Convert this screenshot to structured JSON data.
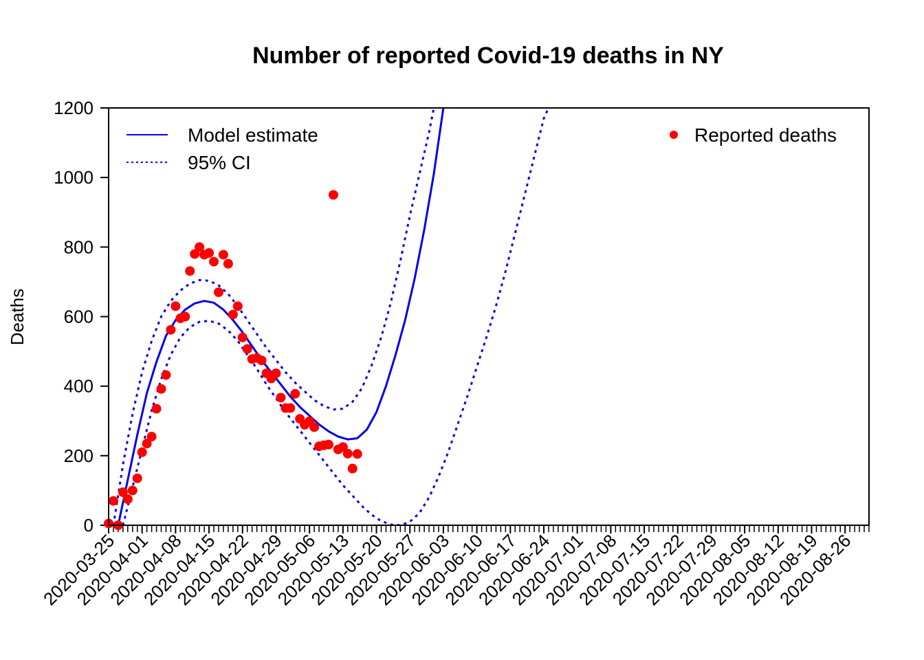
{
  "chart_data": {
    "type": "line",
    "title": "Number of reported Covid-19 deaths in NY",
    "xlabel": "",
    "ylabel": "Deaths",
    "ylim": [
      0,
      1200
    ],
    "xlim": [
      "2020-03-25",
      "2020-08-31"
    ],
    "y_ticks": [
      0,
      200,
      400,
      600,
      800,
      1000,
      1200
    ],
    "x_tick_labels": [
      "2020-03-25",
      "2020-04-01",
      "2020-04-08",
      "2020-04-15",
      "2020-04-22",
      "2020-04-29",
      "2020-05-06",
      "2020-05-13",
      "2020-05-20",
      "2020-05-27",
      "2020-06-03",
      "2020-06-10",
      "2020-06-17",
      "2020-06-24",
      "2020-07-01",
      "2020-07-08",
      "2020-07-15",
      "2020-07-22",
      "2020-07-29",
      "2020-08-05",
      "2020-08-12",
      "2020-08-19",
      "2020-08-26"
    ],
    "grid": false,
    "legend_left": [
      {
        "name": "Model estimate",
        "style": "solid"
      },
      {
        "name": "95% CI",
        "style": "dotted"
      }
    ],
    "legend_right": [
      {
        "name": "Reported deaths",
        "style": "point"
      }
    ],
    "colors": {
      "model": "#0000ee",
      "points": "#ff0000"
    },
    "series": [
      {
        "name": "Reported deaths",
        "kind": "scatter",
        "x": [
          "2020-03-25",
          "2020-03-26",
          "2020-03-27",
          "2020-03-28",
          "2020-03-29",
          "2020-03-30",
          "2020-03-31",
          "2020-04-01",
          "2020-04-02",
          "2020-04-03",
          "2020-04-04",
          "2020-04-05",
          "2020-04-06",
          "2020-04-07",
          "2020-04-08",
          "2020-04-09",
          "2020-04-10",
          "2020-04-11",
          "2020-04-12",
          "2020-04-13",
          "2020-04-14",
          "2020-04-15",
          "2020-04-16",
          "2020-04-17",
          "2020-04-18",
          "2020-04-19",
          "2020-04-20",
          "2020-04-21",
          "2020-04-22",
          "2020-04-23",
          "2020-04-24",
          "2020-04-25",
          "2020-04-26",
          "2020-04-27",
          "2020-04-28",
          "2020-04-29",
          "2020-04-30",
          "2020-05-01",
          "2020-05-02",
          "2020-05-03",
          "2020-05-04",
          "2020-05-05",
          "2020-05-06",
          "2020-05-07",
          "2020-05-08",
          "2020-05-09",
          "2020-05-10",
          "2020-05-11",
          "2020-05-12",
          "2020-05-13",
          "2020-05-14",
          "2020-05-15",
          "2020-05-16"
        ],
        "y": [
          5,
          70,
          0,
          95,
          75,
          100,
          135,
          210,
          235,
          255,
          335,
          392,
          432,
          562,
          630,
          595,
          600,
          731,
          780,
          800,
          778,
          783,
          758,
          670,
          778,
          752,
          606,
          630,
          540,
          507,
          478,
          481,
          474,
          437,
          422,
          437,
          367,
          337,
          337,
          378,
          306,
          289,
          299,
          282,
          227,
          230,
          232,
          950,
          218,
          225,
          206,
          163,
          205
        ]
      },
      {
        "name": "Model estimate",
        "kind": "line",
        "style": "solid",
        "x": [
          "2020-03-27",
          "2020-03-29",
          "2020-03-31",
          "2020-04-02",
          "2020-04-04",
          "2020-04-06",
          "2020-04-08",
          "2020-04-10",
          "2020-04-12",
          "2020-04-14",
          "2020-04-16",
          "2020-04-18",
          "2020-04-20",
          "2020-04-22",
          "2020-04-24",
          "2020-04-26",
          "2020-04-28",
          "2020-04-30",
          "2020-05-02",
          "2020-05-04",
          "2020-05-06",
          "2020-05-08",
          "2020-05-10",
          "2020-05-12",
          "2020-05-14",
          "2020-05-16",
          "2020-05-18",
          "2020-05-20",
          "2020-05-22",
          "2020-05-24",
          "2020-05-26",
          "2020-05-28",
          "2020-05-30",
          "2020-06-01",
          "2020-06-03"
        ],
        "y": [
          0,
          130,
          260,
          380,
          470,
          545,
          590,
          620,
          638,
          645,
          640,
          620,
          590,
          555,
          515,
          475,
          440,
          405,
          370,
          340,
          315,
          290,
          270,
          255,
          247,
          250,
          275,
          325,
          400,
          490,
          590,
          710,
          850,
          1010,
          1200
        ]
      },
      {
        "name": "95% CI",
        "kind": "line",
        "style": "dotted",
        "x": [
          "2020-03-26",
          "2020-03-28",
          "2020-03-30",
          "2020-04-01",
          "2020-04-03",
          "2020-04-05",
          "2020-04-07",
          "2020-04-09",
          "2020-04-11",
          "2020-04-13",
          "2020-04-15",
          "2020-04-17",
          "2020-04-19",
          "2020-04-21",
          "2020-04-23",
          "2020-04-25",
          "2020-04-27",
          "2020-04-29",
          "2020-05-01",
          "2020-05-03",
          "2020-05-05",
          "2020-05-07",
          "2020-05-09",
          "2020-05-11",
          "2020-05-13",
          "2020-05-15",
          "2020-05-17",
          "2020-05-19",
          "2020-05-21",
          "2020-05-23",
          "2020-05-25",
          "2020-05-27",
          "2020-05-29",
          "2020-05-31",
          "2020-06-01"
        ],
        "y": [
          0,
          175,
          320,
          440,
          530,
          600,
          645,
          675,
          695,
          705,
          703,
          690,
          665,
          630,
          590,
          550,
          510,
          475,
          440,
          410,
          385,
          360,
          343,
          333,
          335,
          355,
          395,
          460,
          540,
          640,
          760,
          890,
          1010,
          1130,
          1200
        ]
      },
      {
        "name": "95% CI",
        "kind": "line",
        "style": "dotted",
        "x": [
          "2020-03-28",
          "2020-03-30",
          "2020-04-01",
          "2020-04-03",
          "2020-04-05",
          "2020-04-07",
          "2020-04-09",
          "2020-04-11",
          "2020-04-13",
          "2020-04-15",
          "2020-04-17",
          "2020-04-19",
          "2020-04-21",
          "2020-04-23",
          "2020-04-25",
          "2020-04-27",
          "2020-04-29",
          "2020-05-01",
          "2020-05-03",
          "2020-05-05",
          "2020-05-07",
          "2020-05-09",
          "2020-05-11",
          "2020-05-13",
          "2020-05-15",
          "2020-05-17",
          "2020-05-19",
          "2020-05-21",
          "2020-05-23",
          "2020-05-25",
          "2020-05-27",
          "2020-05-29",
          "2020-05-31",
          "2020-06-02",
          "2020-06-04",
          "2020-06-06",
          "2020-06-08",
          "2020-06-10",
          "2020-06-12",
          "2020-06-14",
          "2020-06-16",
          "2020-06-18",
          "2020-06-20",
          "2020-06-22",
          "2020-06-24",
          "2020-06-25"
        ],
        "y": [
          0,
          110,
          220,
          330,
          420,
          490,
          540,
          570,
          585,
          588,
          580,
          560,
          530,
          490,
          450,
          405,
          365,
          325,
          290,
          255,
          220,
          185,
          150,
          115,
          85,
          55,
          30,
          12,
          2,
          0,
          10,
          35,
          80,
          140,
          210,
          290,
          370,
          455,
          540,
          630,
          730,
          840,
          950,
          1060,
          1170,
          1200
        ]
      }
    ]
  }
}
